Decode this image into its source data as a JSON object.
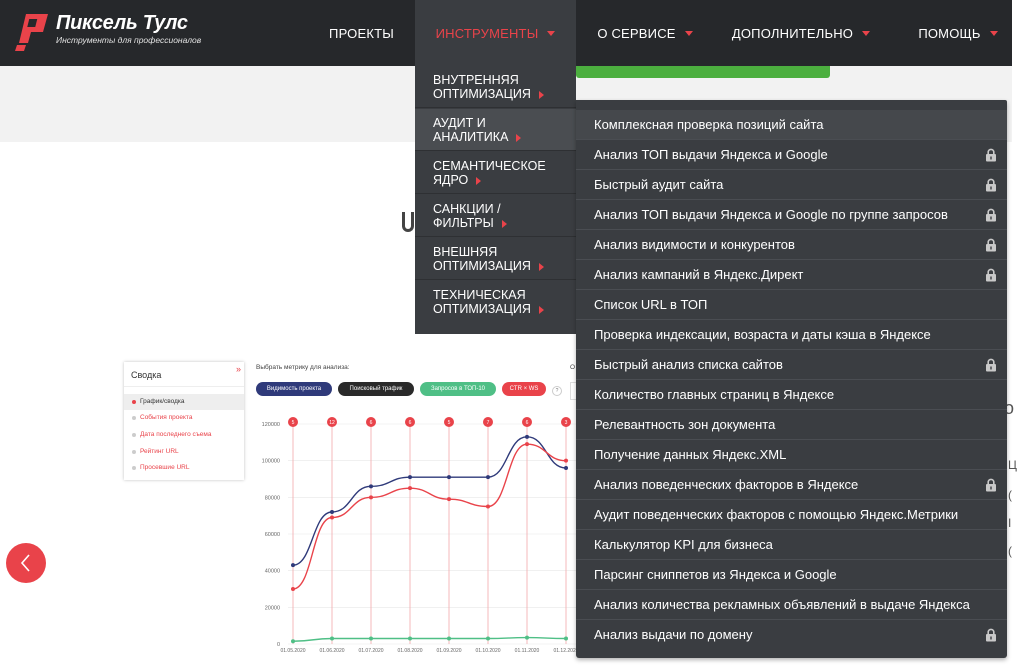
{
  "header": {
    "logo_title": "Пиксель Тулс",
    "logo_subtitle": "Инструменты для профессионалов",
    "nav": [
      {
        "label": "ПРОЕКТЫ",
        "has_caret": false,
        "active": false
      },
      {
        "label": "ИНСТРУМЕНТЫ",
        "has_caret": true,
        "active": true
      },
      {
        "label": "О СЕРВИСЕ",
        "has_caret": true,
        "active": false
      },
      {
        "label": "ДОПОЛНИТЕЛЬНО",
        "has_caret": true,
        "active": false
      },
      {
        "label": "ПОМОЩЬ",
        "has_caret": true,
        "active": false
      }
    ]
  },
  "tools_menu": {
    "items": [
      {
        "line1": "ВНУТРЕННЯЯ",
        "line2": "ОПТИМИЗАЦИЯ",
        "active": false
      },
      {
        "line1": "АУДИТ И",
        "line2": "АНАЛИТИКА",
        "active": true
      },
      {
        "line1": "СЕМАНТИЧЕСКОЕ",
        "line2": "ЯДРО",
        "active": false
      },
      {
        "line1": "САНКЦИИ /",
        "line2": "ФИЛЬТРЫ",
        "active": false
      },
      {
        "line1": "ВНЕШНЯЯ",
        "line2": "ОПТИМИЗАЦИЯ",
        "active": false
      },
      {
        "line1": "ТЕХНИЧЕСКАЯ",
        "line2": "ОПТИМИЗАЦИЯ",
        "active": false
      }
    ]
  },
  "audit_submenu": {
    "items": [
      {
        "label": "Комплексная проверка позиций сайта",
        "locked": false
      },
      {
        "label": "Анализ ТОП выдачи Яндекса и Google",
        "locked": true
      },
      {
        "label": "Быстрый аудит сайта",
        "locked": true
      },
      {
        "label": "Анализ ТОП выдачи Яндекса и Google по группе запросов",
        "locked": true
      },
      {
        "label": "Анализ видимости и конкурентов",
        "locked": true
      },
      {
        "label": "Анализ кампаний в Яндекс.Директ",
        "locked": true
      },
      {
        "label": "Список URL в ТОП",
        "locked": false
      },
      {
        "label": "Проверка индексации, возраста и даты кэша в Яндексе",
        "locked": false
      },
      {
        "label": "Быстрый анализ списка сайтов",
        "locked": true
      },
      {
        "label": "Количество главных страниц в Яндексе",
        "locked": false
      },
      {
        "label": "Релевантность зон документа",
        "locked": false
      },
      {
        "label": "Получение данных Яндекс.XML",
        "locked": false
      },
      {
        "label": "Анализ поведенческих факторов в Яндексе",
        "locked": true
      },
      {
        "label": "Аудит поведенческих факторов с помощью Яндекс.Метрики",
        "locked": false
      },
      {
        "label": "Калькулятор KPI для бизнеса",
        "locked": false
      },
      {
        "label": "Парсинг сниппетов из Яндекса и Google",
        "locked": false
      },
      {
        "label": "Анализ количества рекламных объявлений в выдаче Яндекса",
        "locked": false
      },
      {
        "label": "Анализ выдачи по домену",
        "locked": true
      }
    ]
  },
  "preview": {
    "sidebar_title": "Сводка",
    "sidebar_items": [
      {
        "label": "График/сводка",
        "selected": true
      },
      {
        "label": "События проекта",
        "selected": false
      },
      {
        "label": "Дата последнего съема",
        "selected": false
      },
      {
        "label": "Рейтинг URL",
        "selected": false
      },
      {
        "label": "Просевшие URL",
        "selected": false
      }
    ],
    "metric_label": "Выбрать метрику для анализа:",
    "metric_pills": [
      {
        "label": "Видимость проекта",
        "color": "#2f3a7a"
      },
      {
        "label": "Поисковый трафик",
        "color": "#2a2a2a"
      },
      {
        "label": "Запросов в ТОП-10",
        "color": "#4fbf86"
      },
      {
        "label": "CTR × WS",
        "color": "#e9434a"
      }
    ],
    "small_label": "О",
    "help_mark": "?"
  },
  "colors": {
    "accent": "#e9434a",
    "header_bg": "#26282b",
    "menu_bg": "#3a3d41",
    "green": "#4caf3f"
  },
  "chart_data": {
    "type": "line",
    "x": [
      "01.05.2020",
      "01.06.2020",
      "01.07.2020",
      "01.08.2020",
      "01.09.2020",
      "01.10.2020",
      "01.11.2020",
      "01.12.2020"
    ],
    "yticks": [
      "120000",
      "100000",
      "80000",
      "60000",
      "40000",
      "20000",
      "0"
    ],
    "ylim": [
      0,
      120000
    ],
    "markers": [
      "5",
      "12",
      "6",
      "6",
      "5",
      "7",
      "6",
      "3"
    ],
    "series": [
      {
        "color": "#2f3a7a",
        "values": [
          43000,
          72000,
          86000,
          91000,
          91000,
          91000,
          113000,
          96000
        ]
      },
      {
        "color": "#e9434a",
        "values": [
          30000,
          69000,
          80000,
          85000,
          79000,
          75000,
          109000,
          100000
        ]
      },
      {
        "color": "#4fbf86",
        "values": [
          1500,
          3000,
          3000,
          3000,
          3000,
          3000,
          3500,
          3000
        ]
      }
    ]
  },
  "page_fragments": {
    "edge_chars": [
      "о",
      "Ц",
      "(",
      "I",
      "("
    ]
  }
}
